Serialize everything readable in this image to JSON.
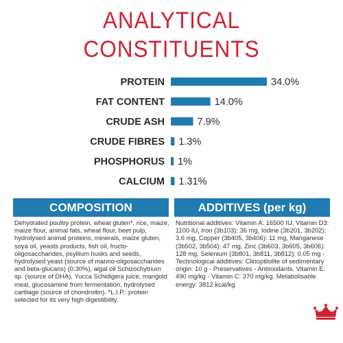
{
  "title_line1": "ANALYTICAL",
  "title_line2": "CONSTITUENTS",
  "chart_data": {
    "type": "bar",
    "orientation": "horizontal",
    "categories": [
      "PROTEIN",
      "FAT CONTENT",
      "CRUDE ASH",
      "CRUDE FIBRES",
      "PHOSPHORUS",
      "CALCIUM"
    ],
    "values": [
      34.0,
      14.0,
      7.9,
      1.3,
      1.0,
      1.31
    ],
    "value_labels": [
      "34.0%",
      "14.0%",
      "7.9%",
      "1.3%",
      "1%",
      "1.31%"
    ],
    "xlim": [
      0,
      34.0
    ],
    "grid": false,
    "bar_color": "#1f7bb0"
  },
  "composition": {
    "heading": "COMPOSITION",
    "text": "Dehydrated poultry protein, wheat gluten*, rice, maize, maize flour, animal fats, wheat flour, beet pulp, hydrolysed animal proteins, minerals, maize gluten, soya oil, yeasts products, fish oil, fructo-oligosaccharides, psyllium husks and seeds, hydrolysed yeast (source of manno-oligosaccharides and beta-glucans) (0.30%), algal oil Schizochytrium sp. (source of DHA), Yucca Schidigera juice, marigold meal, glucosamine from fermentation, hydrolysed cartilage (source of chondroitin). *L.I.P.: protein selected for its very high digestibility."
  },
  "additives": {
    "heading": "ADDITIVES (per kg)",
    "text": "Nutritional additives: Vitamin A: 16500 IU, Vitamin D3: 1100 IU, Iron (3b103): 36 mg, Iodine (3b201, 3b202): 3.6 mg, Copper (3b405, 3b406): 11 mg, Manganese (3b502, 3b504): 47 mg, Zinc (3b603, 3b605, 3b606): 128 mg, Selenium (3b801, 3b811, 3b812): 0.05 mg - Technological additives: Clinoptilolite of sedimentary origin: 10 g - Preservatives - Antioxidants. Vitamin E: 490 mg/kg - Vitamin C: 370 mg/kg. Metabolisable energy: 3812 kcal/kg."
  },
  "logo": {
    "icon": "crown-icon",
    "color": "#cf2434"
  }
}
